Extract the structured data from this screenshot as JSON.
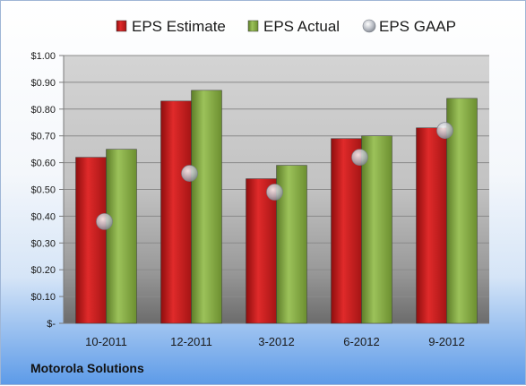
{
  "chart_data": {
    "type": "bar",
    "categories": [
      "10-2011",
      "12-2011",
      "3-2012",
      "6-2012",
      "9-2012"
    ],
    "series": [
      {
        "name": "EPS Estimate",
        "kind": "bar",
        "color": "#cc1f1f",
        "values": [
          0.62,
          0.83,
          0.54,
          0.69,
          0.73
        ]
      },
      {
        "name": "EPS Actual",
        "kind": "bar",
        "color": "#8cb04a",
        "values": [
          0.65,
          0.87,
          0.59,
          0.7,
          0.84
        ]
      },
      {
        "name": "EPS GAAP",
        "kind": "marker",
        "color": "#b8bcc4",
        "values": [
          0.38,
          0.56,
          0.49,
          0.62,
          0.72
        ]
      }
    ],
    "y_ticks": [
      "$-",
      "$0.10",
      "$0.20",
      "$0.30",
      "$0.40",
      "$0.50",
      "$0.60",
      "$0.70",
      "$0.80",
      "$0.90",
      "$1.00"
    ],
    "ylim": [
      0,
      1.0
    ],
    "grid": true,
    "legend_position": "top"
  },
  "company": "Motorola Solutions"
}
